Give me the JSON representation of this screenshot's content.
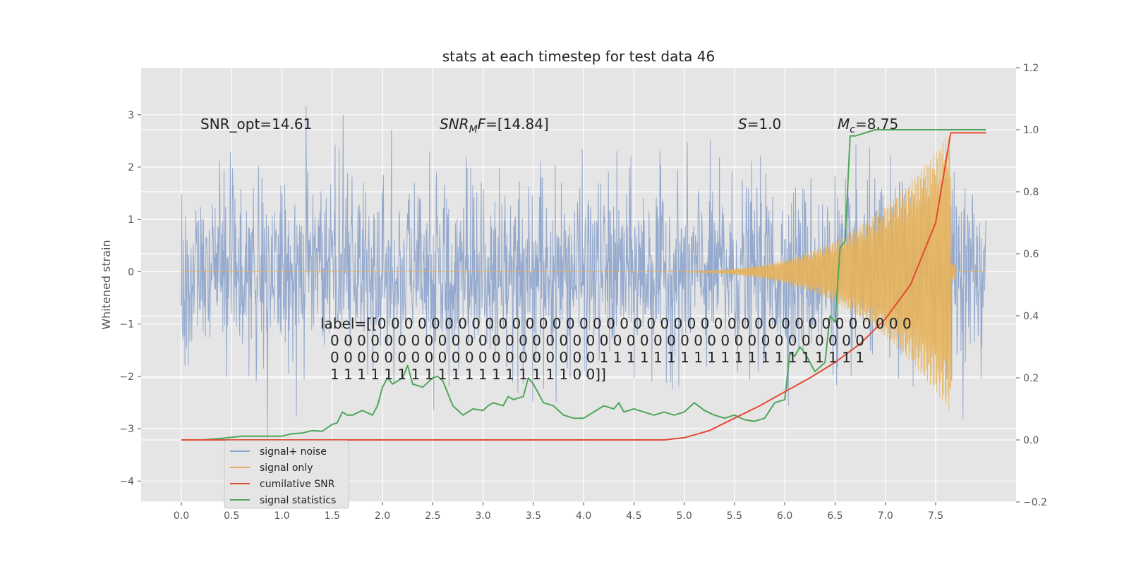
{
  "chart_data": {
    "type": "line",
    "title": "stats at each timestep for test data 46",
    "ylabel": "Whitened strain",
    "xlabel": "",
    "xlim": [
      -0.4,
      8.3
    ],
    "ylim": [
      -4.4,
      3.9
    ],
    "y2lim": [
      -0.2,
      1.2
    ],
    "x_ticks": [
      "0.0",
      "0.5",
      "1.0",
      "1.5",
      "2.0",
      "2.5",
      "3.0",
      "3.5",
      "4.0",
      "4.5",
      "5.0",
      "5.5",
      "6.0",
      "6.5",
      "7.0",
      "7.5"
    ],
    "y_ticks": [
      "−4",
      "−3",
      "−2",
      "−1",
      "0",
      "1",
      "2",
      "3"
    ],
    "y2_ticks": [
      "−0.2",
      "0.0",
      "0.2",
      "0.4",
      "0.6",
      "0.8",
      "1.0",
      "1.2"
    ],
    "grid": true,
    "legend_position": "lower-left",
    "colors": {
      "noise": "#8fa5cb",
      "signal": "#e6b15a",
      "cumulative": "#e24a33",
      "statistics": "#4ea65a",
      "background": "#e5e5e5"
    },
    "annotations": {
      "snr_opt": "SNR_opt=14.61",
      "snr_mf_main": "SNR",
      "snr_mf_sub": "M",
      "snr_mf_rest": "F=[14.84]",
      "s_main": "S",
      "s_rest": "=1.0",
      "mc_main": "M",
      "mc_sub": "c",
      "mc_rest": "=8.75",
      "label_lines": [
        "label=[[0 0 0 0 0 0 0 0 0 0 0 0 0 0 0 0 0 0 0 0 0 0 0 0 0 0 0 0 0 0 0 0 0 0 0 0 0 0 0 0",
        "0 0 0 0 0 0 0 0 0 0 0 0 0 0 0 0 0 0 0 0 0 0 0 0 0 0 0 0 0 0 0 0 0 0 0 0 0 0 0 0",
        "0 0 0 0 0 0 0 0 0 0 0 0 0 0 0 0 0 0 0 0 1 1 1 1 1 1 1 1 1 1 1 1 1 1 1 1 1 1 1 1",
        "1 1 1 1 1 1 1 1 1 1 1 1 1 1 1 1 1 1 0 0]]"
      ]
    },
    "series": [
      {
        "name": "signal+ noise",
        "axis": "left",
        "description": "random noise, amplitude ~±1.5 with peaks to ±3.5, over x 0 to 8"
      },
      {
        "name": "signal only",
        "axis": "left",
        "description": "chirp growing from x≈4.8 to peak ±2.7 at x≈7.65, then ~0"
      },
      {
        "name": "cumilative SNR",
        "axis": "right",
        "x": [
          0.0,
          1.0,
          2.0,
          3.0,
          4.0,
          4.5,
          4.8,
          5.0,
          5.25,
          5.5,
          5.75,
          6.0,
          6.25,
          6.5,
          6.75,
          7.0,
          7.25,
          7.5,
          7.65,
          8.0
        ],
        "values": [
          0.0,
          0.0,
          0.0,
          0.0,
          0.0,
          0.0,
          0.0,
          0.007,
          0.03,
          0.07,
          0.11,
          0.155,
          0.2,
          0.25,
          0.31,
          0.39,
          0.5,
          0.7,
          0.99,
          0.99
        ]
      },
      {
        "name": "signal statistics",
        "axis": "right",
        "x": [
          0.0,
          0.2,
          0.4,
          0.6,
          0.8,
          1.0,
          1.1,
          1.2,
          1.3,
          1.4,
          1.5,
          1.55,
          1.6,
          1.65,
          1.7,
          1.8,
          1.9,
          1.95,
          2.0,
          2.05,
          2.1,
          2.2,
          2.25,
          2.3,
          2.4,
          2.5,
          2.55,
          2.6,
          2.7,
          2.8,
          2.9,
          3.0,
          3.05,
          3.1,
          3.2,
          3.25,
          3.3,
          3.4,
          3.45,
          3.5,
          3.6,
          3.7,
          3.8,
          3.9,
          4.0,
          4.1,
          4.2,
          4.3,
          4.35,
          4.4,
          4.5,
          4.6,
          4.7,
          4.8,
          4.9,
          5.0,
          5.1,
          5.2,
          5.3,
          5.4,
          5.5,
          5.6,
          5.7,
          5.8,
          5.9,
          6.0,
          6.05,
          6.1,
          6.15,
          6.2,
          6.3,
          6.4,
          6.45,
          6.5,
          6.55,
          6.6,
          6.65,
          6.7,
          6.8,
          6.9,
          7.0,
          8.0
        ],
        "values": [
          0.0,
          0.0,
          0.005,
          0.012,
          0.012,
          0.012,
          0.02,
          0.022,
          0.03,
          0.028,
          0.05,
          0.055,
          0.09,
          0.08,
          0.08,
          0.095,
          0.08,
          0.11,
          0.17,
          0.2,
          0.18,
          0.2,
          0.24,
          0.18,
          0.17,
          0.2,
          0.205,
          0.19,
          0.11,
          0.08,
          0.1,
          0.095,
          0.11,
          0.12,
          0.11,
          0.14,
          0.13,
          0.14,
          0.2,
          0.18,
          0.12,
          0.11,
          0.08,
          0.07,
          0.07,
          0.09,
          0.11,
          0.1,
          0.12,
          0.09,
          0.1,
          0.09,
          0.08,
          0.09,
          0.08,
          0.09,
          0.12,
          0.095,
          0.08,
          0.07,
          0.08,
          0.065,
          0.06,
          0.07,
          0.12,
          0.13,
          0.28,
          0.27,
          0.3,
          0.28,
          0.22,
          0.25,
          0.4,
          0.38,
          0.62,
          0.64,
          0.98,
          0.98,
          0.99,
          1.0,
          1.0,
          1.0
        ]
      }
    ]
  }
}
